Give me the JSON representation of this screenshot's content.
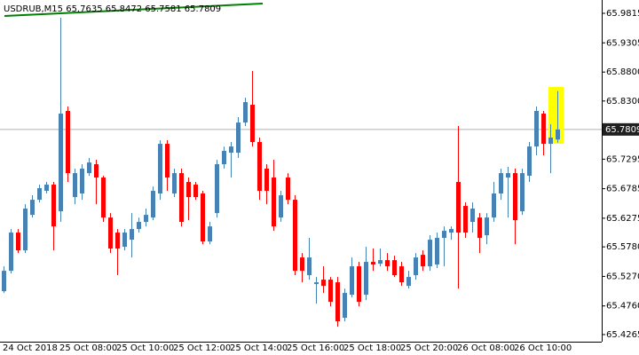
{
  "chart_data": {
    "type": "candlestick",
    "title": "USDRUB,M15  65.7635 65.8472 65.7581 65.7809",
    "categories": [
      "24 Oct 2018",
      null,
      null,
      null,
      null,
      null,
      null,
      null,
      "25 Oct 08:00",
      null,
      null,
      null,
      null,
      null,
      null,
      null,
      "25 Oct 10:00",
      null,
      null,
      null,
      null,
      null,
      null,
      null,
      "25 Oct 12:00",
      null,
      null,
      null,
      null,
      null,
      null,
      null,
      "25 Oct 14:00",
      null,
      null,
      null,
      null,
      null,
      null,
      null,
      "25 Oct 16:00",
      null,
      null,
      null,
      null,
      null,
      null,
      null,
      "25 Oct 18:00",
      null,
      null,
      null,
      null,
      null,
      null,
      null,
      "25 Oct 20:00",
      null,
      null,
      null,
      null,
      null,
      null,
      null,
      "26 Oct 08:00",
      null,
      null,
      null,
      null,
      null,
      null,
      null,
      "26 Oct 10:00",
      null,
      null,
      null,
      null,
      null,
      null
    ],
    "open": [
      65.5014,
      65.5367,
      65.6027,
      65.572,
      65.6333,
      65.6594,
      65.6748,
      65.6855,
      65.6395,
      65.8128,
      65.664,
      65.6702,
      65.7054,
      65.7208,
      65.6978,
      65.6287,
      65.6027,
      65.5781,
      65.5904,
      65.6088,
      65.6211,
      65.6287,
      65.6702,
      65.756,
      65.6702,
      65.7054,
      65.6901,
      65.6855,
      65.6702,
      65.5873,
      65.6364,
      65.7208,
      65.7407,
      65.7407,
      65.7928,
      65.8235,
      65.7591,
      65.7131,
      65.6978,
      65.6287,
      65.6978,
      65.6594,
      65.5597,
      65.5291,
      65.5137,
      65.5214,
      65.5214,
      65.5168,
      65.4554,
      65.4953,
      65.5444,
      65.4953,
      65.5521,
      65.549,
      65.5551,
      65.5551,
      65.5444,
      65.5106,
      65.5291,
      65.5643,
      65.5444,
      65.5475,
      65.5935,
      65.6027,
      65.6901,
      65.6487,
      65.6211,
      65.6287,
      65.5981,
      65.6287,
      65.6702,
      65.6978,
      65.7054,
      65.6395,
      65.7008,
      65.7514,
      65.8082,
      65.756,
      65.7635
    ],
    "high": [
      65.5444,
      65.6088,
      65.6088,
      65.6517,
      65.6671,
      65.6855,
      65.6901,
      65.6901,
      65.9738,
      65.8205,
      65.7131,
      65.7208,
      65.7315,
      65.7284,
      65.7008,
      65.6364,
      65.6088,
      65.6088,
      65.6364,
      65.6287,
      65.6441,
      65.6824,
      65.7622,
      65.7622,
      65.7131,
      65.7131,
      65.6978,
      65.6901,
      65.6748,
      65.6211,
      65.7284,
      65.7514,
      65.7591,
      65.8021,
      65.8358,
      65.8818,
      65.7668,
      65.7208,
      65.7284,
      65.6748,
      65.7054,
      65.6671,
      65.5674,
      65.5935,
      65.526,
      65.5444,
      65.526,
      65.526,
      65.506,
      65.5597,
      65.5521,
      65.5781,
      65.5751,
      65.5751,
      65.5674,
      65.5628,
      65.5521,
      65.5367,
      65.5674,
      65.572,
      65.5981,
      65.6027,
      65.6134,
      65.6134,
      65.7867,
      65.6548,
      65.6548,
      65.6364,
      65.6364,
      65.6901,
      65.7131,
      65.7162,
      65.7131,
      65.7131,
      65.7591,
      65.8205,
      65.8128,
      65.7898,
      65.8472
    ],
    "low": [
      65.4984,
      65.5321,
      65.5674,
      65.5674,
      65.6287,
      65.6548,
      65.6702,
      65.572,
      65.6211,
      65.6901,
      65.6517,
      65.6594,
      65.7008,
      65.6517,
      65.6211,
      65.5674,
      65.5291,
      65.572,
      65.5597,
      65.6027,
      65.6134,
      65.6241,
      65.6594,
      65.6748,
      65.664,
      65.6134,
      65.6241,
      65.6594,
      65.5827,
      65.5827,
      65.6287,
      65.7131,
      65.6978,
      65.7315,
      65.7867,
      65.7514,
      65.6594,
      65.6517,
      65.6057,
      65.6211,
      65.6517,
      65.5291,
      65.5168,
      65.5214,
      65.48,
      65.4984,
      65.4754,
      65.4401,
      65.4493,
      65.4907,
      65.4754,
      65.4861,
      65.5367,
      65.5444,
      65.5367,
      65.526,
      65.5106,
      65.506,
      65.5214,
      65.5367,
      65.5367,
      65.5413,
      65.5444,
      65.5904,
      65.506,
      65.5935,
      65.6027,
      65.5674,
      65.5827,
      65.6211,
      65.6594,
      65.6287,
      65.5827,
      65.6333,
      65.6901,
      65.7361,
      65.7361,
      65.7054,
      65.7581
    ],
    "close": [
      65.5367,
      65.6027,
      65.572,
      65.6441,
      65.6594,
      65.6794,
      65.6855,
      65.6134,
      65.8082,
      65.7054,
      65.7054,
      65.7131,
      65.7238,
      65.6978,
      65.6287,
      65.5751,
      65.5751,
      65.6027,
      65.6088,
      65.6211,
      65.6333,
      65.6748,
      65.756,
      65.6978,
      65.7054,
      65.6211,
      65.664,
      65.664,
      65.5873,
      65.6134,
      65.7208,
      65.7438,
      65.7514,
      65.7928,
      65.8281,
      65.7591,
      65.6748,
      65.6748,
      65.6134,
      65.6671,
      65.6594,
      65.5367,
      65.5367,
      65.5597,
      65.5168,
      65.5106,
      65.483,
      65.4493,
      65.4984,
      65.5444,
      65.483,
      65.5521,
      65.5475,
      65.5551,
      65.5444,
      65.5291,
      65.5168,
      65.526,
      65.5597,
      65.5444,
      65.5904,
      65.5935,
      65.6057,
      65.6088,
      65.6027,
      65.6027,
      65.6441,
      65.5935,
      65.6287,
      65.6702,
      65.7054,
      65.7054,
      65.6241,
      65.7054,
      65.7514,
      65.8128,
      65.756,
      65.7668,
      65.7809
    ],
    "up_color": "#4682b4",
    "down_color": "#ff0000",
    "last_price": 65.7809,
    "ylim": [
      65.4142,
      66.0045
    ],
    "yticks": [
      65.9815,
      65.9305,
      {
        "value": 65.88,
        "label": "65.8800"
      },
      {
        "value": 65.83,
        "label": "65.8300"
      },
      65.7295,
      65.6785,
      65.6275,
      {
        "value": 65.578,
        "label": "65.5780"
      },
      {
        "value": 65.527,
        "label": "65.5270"
      },
      {
        "value": 65.476,
        "label": "65.4760"
      },
      65.4265
    ]
  }
}
